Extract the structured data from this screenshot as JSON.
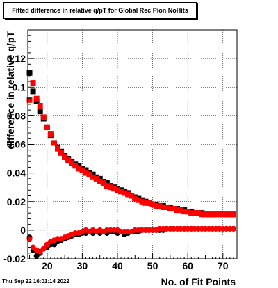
{
  "timestamp": "Thu Sep 22 16:01:14 2022",
  "chart_data": {
    "type": "scatter",
    "title": "Fitted difference in relative q/pT for Global Rec Pion NoHits",
    "xlabel": "No. of Fit Points",
    "ylabel": "difference in relative q/pT",
    "xlim": [
      14.5,
      74
    ],
    "ylim": [
      -0.02,
      0.14
    ],
    "xticks": [
      20,
      30,
      40,
      50,
      60,
      70
    ],
    "yticks": [
      -0.02,
      0,
      0.02,
      0.04,
      0.06,
      0.08,
      0.1,
      0.12
    ],
    "ytick_labels": [
      "-0.02",
      "0",
      "0.02",
      "0.04",
      "0.06",
      "0.08",
      "0.1",
      "0.12"
    ],
    "grid": true,
    "x": [
      15,
      16,
      17,
      18,
      19,
      20,
      21,
      22,
      23,
      24,
      25,
      26,
      27,
      28,
      29,
      30,
      31,
      32,
      33,
      34,
      35,
      36,
      37,
      38,
      39,
      40,
      41,
      42,
      43,
      44,
      45,
      46,
      47,
      48,
      49,
      50,
      51,
      52,
      53,
      54,
      55,
      56,
      57,
      58,
      59,
      60,
      61,
      62,
      63,
      64,
      65,
      66,
      67,
      68,
      69,
      70,
      71,
      72,
      73
    ],
    "series": [
      {
        "color": "#000000",
        "marker": "square",
        "values": [
          0.11,
          0.097,
          0.09,
          0.083,
          0.078,
          0.072,
          0.066,
          0.061,
          0.058,
          0.055,
          0.052,
          0.05,
          0.048,
          0.046,
          0.045,
          0.043,
          0.042,
          0.04,
          0.039,
          0.037,
          0.036,
          0.034,
          0.033,
          0.031,
          0.03,
          0.029,
          0.028,
          0.027,
          0.026,
          0.024,
          0.023,
          0.022,
          0.021,
          0.02,
          0.019,
          0.018,
          0.018,
          0.017,
          0.017,
          0.016,
          0.016,
          0.015,
          0.015,
          0.014,
          0.014,
          0.013,
          0.013,
          0.012,
          0.012,
          0.012,
          0.011,
          0.011,
          0.011,
          0.011,
          0.011,
          0.011,
          0.011,
          0.011,
          0.011
        ]
      },
      {
        "color": "#ff0000",
        "marker": "square",
        "values": [
          0.091,
          0.103,
          0.092,
          0.087,
          0.079,
          0.072,
          0.067,
          0.061,
          0.057,
          0.054,
          0.051,
          0.049,
          0.047,
          0.045,
          0.043,
          0.042,
          0.04,
          0.039,
          0.037,
          0.036,
          0.034,
          0.033,
          0.031,
          0.03,
          0.029,
          0.028,
          0.027,
          0.026,
          0.025,
          0.024,
          0.022,
          0.021,
          0.02,
          0.019,
          0.019,
          0.018,
          0.017,
          0.017,
          0.016,
          0.016,
          0.015,
          0.015,
          0.014,
          0.014,
          0.013,
          0.013,
          0.012,
          0.012,
          0.012,
          0.011,
          0.011,
          0.011,
          0.011,
          0.011,
          0.011,
          0.011,
          0.011,
          0.011,
          0.011
        ]
      },
      {
        "color": "#000000",
        "marker": "circle",
        "values": [
          -0.005,
          -0.014,
          -0.018,
          -0.016,
          -0.013,
          -0.012,
          -0.01,
          -0.01,
          -0.008,
          -0.007,
          -0.006,
          -0.005,
          -0.004,
          -0.003,
          -0.003,
          -0.002,
          -0.002,
          -0.001,
          -0.002,
          -0.001,
          -0.002,
          -0.001,
          -0.002,
          -0.001,
          -0.001,
          -0.002,
          -0.001,
          -0.003,
          -0.002,
          -0.001,
          -0.001,
          -0.001,
          0.0,
          0.0,
          0.0,
          0.0,
          0.0,
          0.0,
          0.0,
          0.001,
          0.001,
          0.001,
          0.001,
          0.001,
          0.001,
          0.001,
          0.001,
          0.001,
          0.001,
          0.001,
          0.001,
          0.001,
          0.001,
          0.001,
          0.001,
          0.001,
          0.001,
          0.001,
          0.001
        ]
      },
      {
        "color": "#ff0000",
        "marker": "circle",
        "values": [
          -0.006,
          -0.012,
          -0.014,
          -0.015,
          -0.013,
          -0.01,
          -0.008,
          -0.007,
          -0.006,
          -0.006,
          -0.005,
          -0.004,
          -0.003,
          -0.002,
          -0.002,
          -0.001,
          0.0,
          -0.001,
          0.0,
          -0.001,
          0.0,
          -0.001,
          0.0,
          0.0,
          0.0,
          0.0,
          -0.001,
          -0.001,
          -0.001,
          -0.001,
          0.0,
          0.0,
          0.0,
          0.0,
          0.0,
          0.0,
          0.0,
          0.001,
          0.001,
          0.001,
          0.001,
          0.001,
          0.001,
          0.001,
          0.001,
          0.001,
          0.001,
          0.001,
          0.001,
          0.001,
          0.001,
          0.001,
          0.001,
          0.001,
          0.001,
          0.001,
          0.001,
          0.001,
          0.001
        ]
      }
    ]
  }
}
